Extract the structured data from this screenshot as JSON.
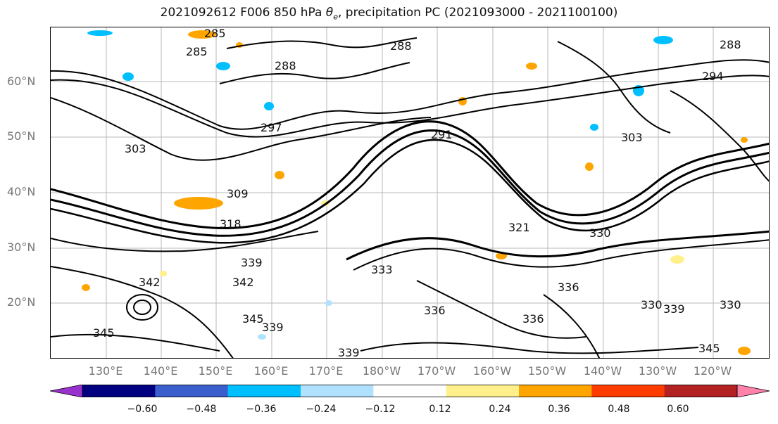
{
  "title_main": "2021092612 F006 850 hPa ",
  "title_theta": "θ",
  "title_theta_sub": "e",
  "title_rest": ", precipitation PC (2021093000 - 2021100100)",
  "latitude_labels": [
    "60°N",
    "50°N",
    "40°N",
    "30°N",
    "20°N"
  ],
  "longitude_labels": [
    "130°E",
    "140°E",
    "150°E",
    "160°E",
    "170°E",
    "180°W",
    "170°W",
    "160°W",
    "150°W",
    "140°W",
    "130°W",
    "120°W"
  ],
  "contour_labels": [
    "285",
    "285",
    "288",
    "288",
    "288",
    "294",
    "297",
    "291",
    "303",
    "303",
    "309",
    "318",
    "321",
    "330",
    "333",
    "336",
    "339",
    "342",
    "342",
    "345",
    "345",
    "339",
    "336",
    "339",
    "339",
    "345",
    "330",
    "336",
    "330"
  ],
  "colorbar": {
    "ticks": [
      "−0.60",
      "−0.48",
      "−0.36",
      "−0.24",
      "−0.12",
      "0.12",
      "0.24",
      "0.36",
      "0.48",
      "0.60"
    ],
    "colors": [
      "#9932cc",
      "#000080",
      "#3a5fcd",
      "#00bfff",
      "#b0e2ff",
      "#ffffff",
      "#fff08c",
      "#ffa500",
      "#ff3c00",
      "#b22222",
      "#ff82ab"
    ]
  }
}
